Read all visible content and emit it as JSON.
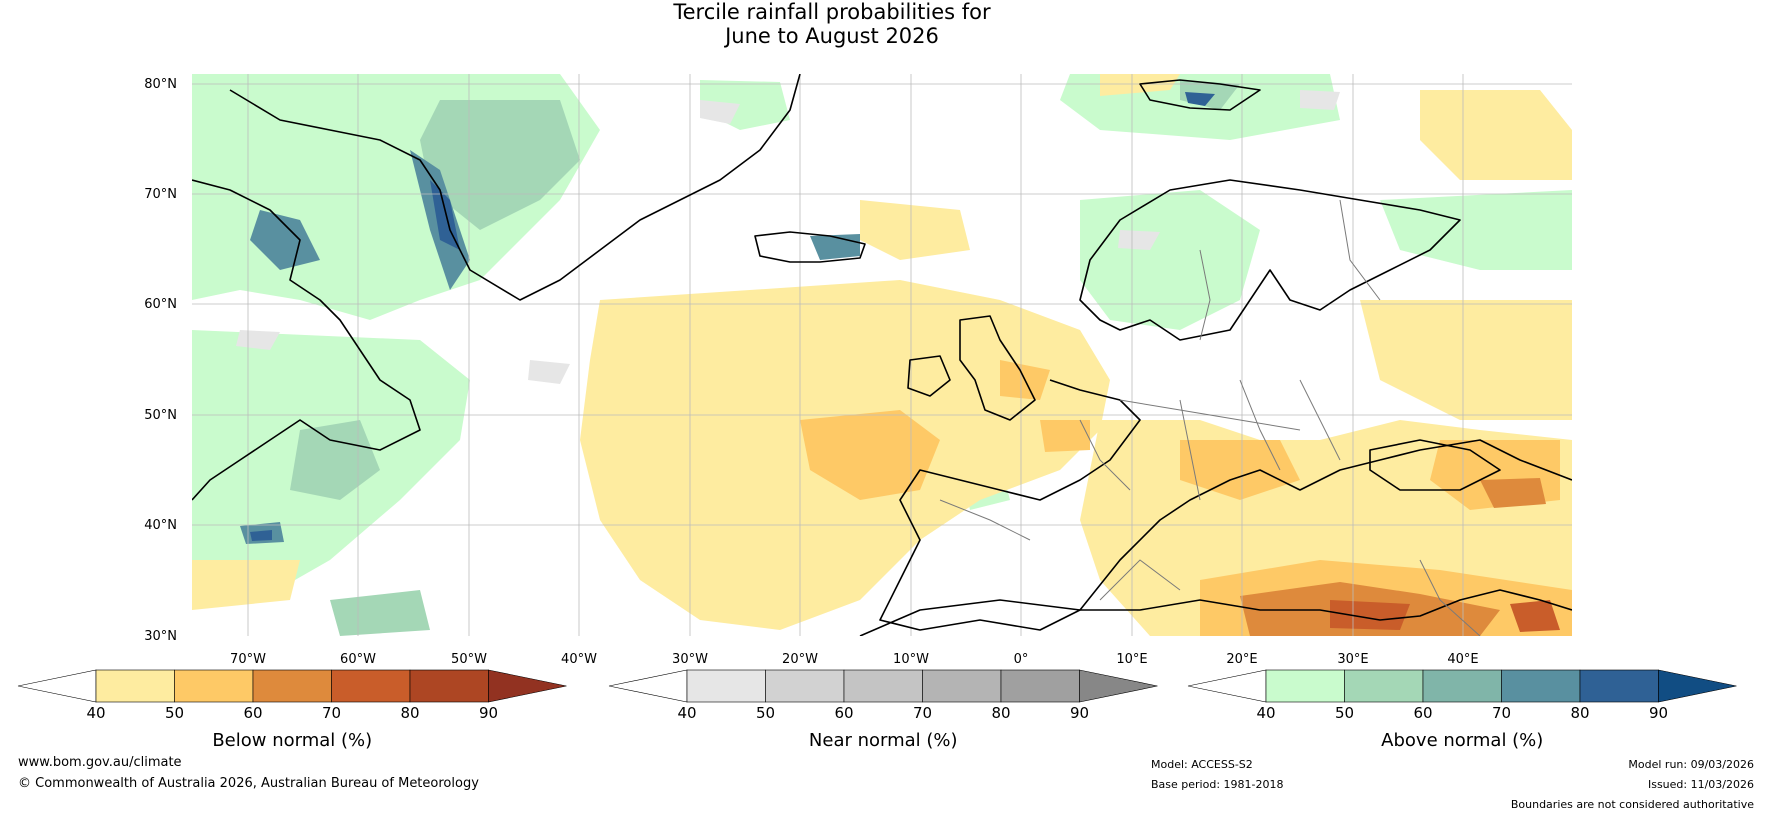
{
  "title": {
    "line1": "Tercile rainfall probabilities for",
    "line2": "June to August 2026"
  },
  "map": {
    "region": "Northern Atlantic and Europe",
    "lat_labels": [
      "80°N",
      "70°N",
      "60°N",
      "50°N",
      "40°N",
      "30°N"
    ],
    "lon_labels": [
      "70°W",
      "60°W",
      "50°W",
      "40°W",
      "30°W",
      "20°W",
      "10°W",
      "0°",
      "10°E",
      "20°E",
      "30°E",
      "40°E"
    ],
    "colors": {
      "land_outline": "#000000",
      "border_outline": "#7a7a7a",
      "grid": "#bbbbbb",
      "ocean": "#ffffff"
    }
  },
  "colorbars": [
    {
      "label": "Below normal (%)",
      "ticks": [
        "40",
        "50",
        "60",
        "70",
        "80",
        "90"
      ],
      "colors": [
        "#ffffff",
        "#feeca0",
        "#fec966",
        "#de8a3c",
        "#c95d2a",
        "#ad4623",
        "#923221"
      ]
    },
    {
      "label": "Near normal (%)",
      "ticks": [
        "40",
        "50",
        "60",
        "70",
        "80",
        "90"
      ],
      "colors": [
        "#ffffff",
        "#e6e6e6",
        "#d2d2d2",
        "#c4c4c4",
        "#b4b4b4",
        "#a0a0a0",
        "#878787"
      ]
    },
    {
      "label": "Above normal (%)",
      "ticks": [
        "40",
        "50",
        "60",
        "70",
        "80",
        "90"
      ],
      "colors": [
        "#ffffff",
        "#c9fbcd",
        "#a4d7b6",
        "#80b5a9",
        "#5990a0",
        "#2f6195",
        "#114d83"
      ]
    }
  ],
  "footer": {
    "website": "www.bom.gov.au/climate",
    "copyright": "© Commonwealth of Australia 2026, Australian Bureau of Meteorology",
    "model": "Model: ACCESS-S2",
    "base_period": "Base period: 1981-2018",
    "model_run": "Model run: 09/03/2026",
    "issued": "Issued: 11/03/2026",
    "disclaimer": "Boundaries are not considered authoritative"
  }
}
